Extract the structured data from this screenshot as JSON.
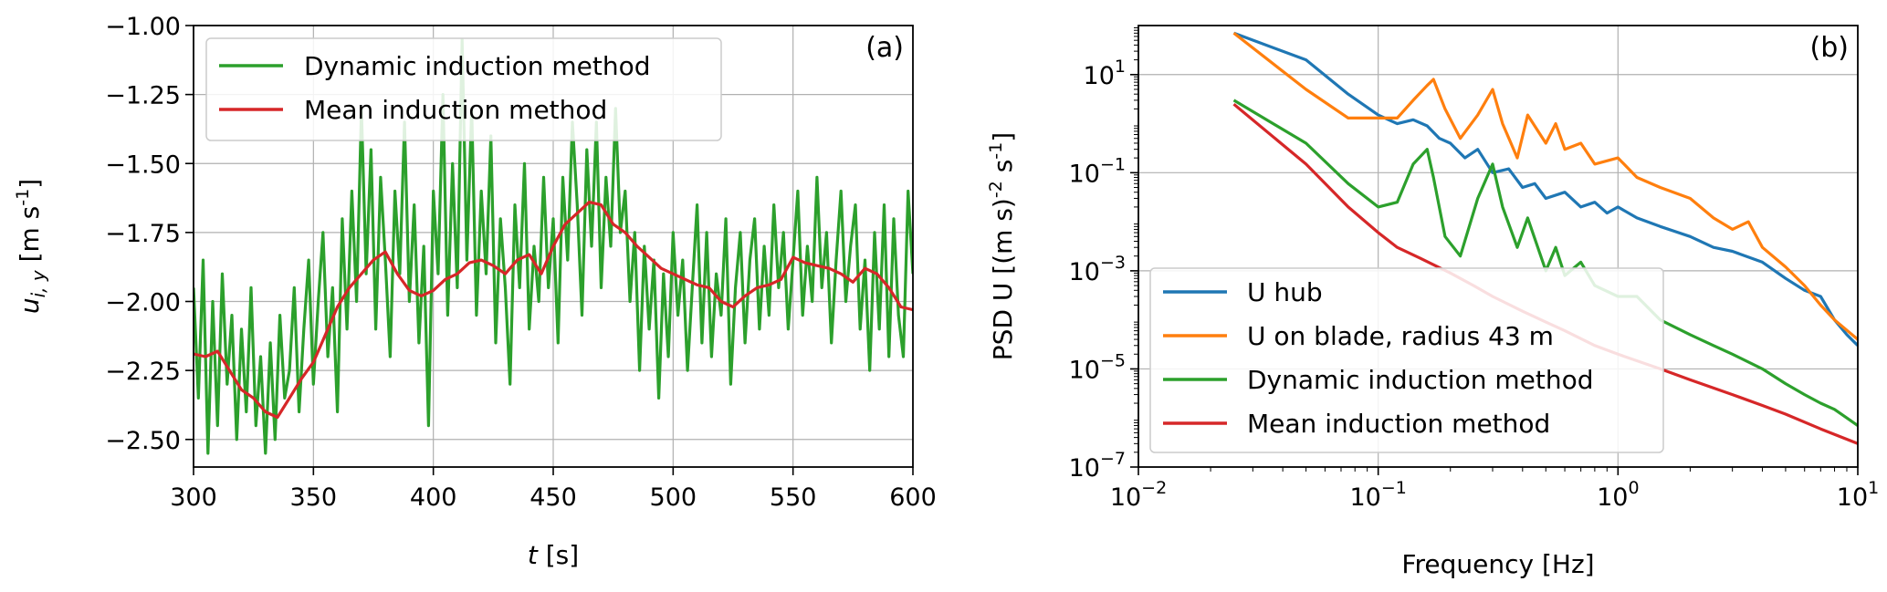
{
  "chart_data": [
    {
      "type": "line",
      "panel_label": "(a)",
      "xlabel_var": "t",
      "xlabel_unit": " [s]",
      "ylabel_var": "u",
      "ylabel_sub": "i, y",
      "ylabel_unit": " [m s",
      "ylabel_unit_sup": "-1",
      "ylabel_unit_end": "]",
      "xlim": [
        300,
        600
      ],
      "ylim": [
        -2.6,
        -1.0
      ],
      "xticks": [
        300,
        350,
        400,
        450,
        500,
        550,
        600
      ],
      "xtick_labels": [
        "300",
        "350",
        "400",
        "450",
        "500",
        "550",
        "600"
      ],
      "yticks": [
        -2.5,
        -2.25,
        -2.0,
        -1.75,
        -1.5,
        -1.25,
        -1.0
      ],
      "ytick_labels": [
        "−2.50",
        "−2.25",
        "−2.00",
        "−1.75",
        "−1.50",
        "−1.25",
        "−1.00"
      ],
      "grid": true,
      "legend_position": "top-left",
      "series": [
        {
          "name": "Dynamic induction method",
          "color": "#2ca02c",
          "x": [
            300,
            302,
            304,
            306,
            308,
            310,
            312,
            314,
            316,
            318,
            320,
            322,
            324,
            326,
            328,
            330,
            332,
            334,
            336,
            338,
            340,
            342,
            344,
            346,
            348,
            350,
            352,
            354,
            356,
            358,
            360,
            362,
            364,
            366,
            368,
            370,
            372,
            374,
            376,
            378,
            380,
            382,
            384,
            386,
            388,
            390,
            392,
            394,
            396,
            398,
            400,
            402,
            404,
            406,
            408,
            410,
            412,
            414,
            416,
            418,
            420,
            422,
            424,
            426,
            428,
            430,
            432,
            434,
            436,
            438,
            440,
            442,
            444,
            446,
            448,
            450,
            452,
            454,
            456,
            458,
            460,
            462,
            464,
            466,
            468,
            470,
            472,
            474,
            476,
            478,
            480,
            482,
            484,
            486,
            488,
            490,
            492,
            494,
            496,
            498,
            500,
            502,
            504,
            506,
            508,
            510,
            512,
            514,
            516,
            518,
            520,
            522,
            524,
            526,
            528,
            530,
            532,
            534,
            536,
            538,
            540,
            542,
            544,
            546,
            548,
            550,
            552,
            554,
            556,
            558,
            560,
            562,
            564,
            566,
            568,
            570,
            572,
            574,
            576,
            578,
            580,
            582,
            584,
            586,
            588,
            590,
            592,
            594,
            596,
            598,
            600
          ],
          "y": [
            -1.95,
            -2.35,
            -1.85,
            -2.55,
            -2.0,
            -2.45,
            -1.9,
            -2.3,
            -2.05,
            -2.5,
            -2.1,
            -2.4,
            -1.95,
            -2.45,
            -2.2,
            -2.55,
            -2.15,
            -2.5,
            -2.05,
            -2.35,
            -2.25,
            -1.95,
            -2.4,
            -2.1,
            -1.85,
            -2.3,
            -2.0,
            -1.75,
            -2.2,
            -1.95,
            -2.4,
            -1.7,
            -2.1,
            -1.6,
            -2.0,
            -1.3,
            -1.9,
            -1.45,
            -2.1,
            -1.55,
            -1.85,
            -2.2,
            -1.6,
            -1.9,
            -1.35,
            -2.0,
            -1.65,
            -2.15,
            -1.8,
            -2.45,
            -1.6,
            -1.9,
            -1.25,
            -2.05,
            -1.5,
            -1.95,
            -1.05,
            -1.85,
            -1.3,
            -2.05,
            -1.6,
            -1.9,
            -1.4,
            -2.15,
            -1.7,
            -1.95,
            -2.3,
            -1.65,
            -1.95,
            -1.5,
            -2.1,
            -1.8,
            -2.0,
            -1.55,
            -1.95,
            -1.7,
            -2.15,
            -1.55,
            -1.85,
            -1.35,
            -1.65,
            -2.05,
            -1.45,
            -1.8,
            -1.35,
            -1.95,
            -1.55,
            -1.8,
            -1.3,
            -1.75,
            -1.6,
            -2.0,
            -1.75,
            -2.25,
            -1.8,
            -2.1,
            -1.85,
            -2.35,
            -1.9,
            -2.2,
            -1.75,
            -2.05,
            -1.85,
            -2.25,
            -1.95,
            -1.65,
            -2.15,
            -1.75,
            -2.2,
            -1.9,
            -2.05,
            -1.7,
            -2.3,
            -1.95,
            -1.75,
            -2.15,
            -1.85,
            -1.7,
            -2.1,
            -1.8,
            -2.05,
            -1.65,
            -1.95,
            -1.75,
            -2.1,
            -1.85,
            -1.6,
            -2.05,
            -1.8,
            -2.0,
            -1.55,
            -1.95,
            -1.75,
            -2.15,
            -1.85,
            -1.6,
            -2.0,
            -1.8,
            -1.65,
            -2.1,
            -1.85,
            -2.25,
            -1.75,
            -2.1,
            -1.65,
            -2.2,
            -1.7,
            -2.05,
            -2.2,
            -1.6,
            -1.9
          ]
        },
        {
          "name": "Mean induction method",
          "color": "#d62728",
          "x": [
            300,
            305,
            310,
            315,
            320,
            325,
            330,
            335,
            340,
            345,
            350,
            355,
            360,
            365,
            370,
            375,
            380,
            385,
            390,
            395,
            400,
            405,
            410,
            415,
            420,
            425,
            430,
            435,
            440,
            445,
            450,
            455,
            460,
            465,
            470,
            475,
            480,
            485,
            490,
            495,
            500,
            505,
            510,
            515,
            520,
            525,
            530,
            535,
            540,
            545,
            550,
            555,
            560,
            565,
            570,
            575,
            580,
            585,
            590,
            595,
            600
          ],
          "y": [
            -2.19,
            -2.2,
            -2.18,
            -2.25,
            -2.32,
            -2.35,
            -2.4,
            -2.42,
            -2.35,
            -2.28,
            -2.22,
            -2.12,
            -2.02,
            -1.95,
            -1.9,
            -1.85,
            -1.82,
            -1.9,
            -1.96,
            -1.98,
            -1.96,
            -1.92,
            -1.9,
            -1.86,
            -1.85,
            -1.87,
            -1.9,
            -1.85,
            -1.83,
            -1.9,
            -1.8,
            -1.72,
            -1.68,
            -1.64,
            -1.65,
            -1.72,
            -1.75,
            -1.8,
            -1.84,
            -1.88,
            -1.9,
            -1.92,
            -1.94,
            -1.95,
            -2.0,
            -2.02,
            -1.98,
            -1.95,
            -1.94,
            -1.92,
            -1.84,
            -1.86,
            -1.87,
            -1.88,
            -1.9,
            -1.93,
            -1.88,
            -1.9,
            -1.95,
            -2.02,
            -2.03
          ]
        }
      ]
    },
    {
      "type": "line",
      "panel_label": "(b)",
      "xlabel": "Frequency [Hz]",
      "ylabel": "PSD U [(m s)",
      "ylabel_sup1": "-2",
      "ylabel_mid": " s",
      "ylabel_sup2": "-1",
      "ylabel_end": "]",
      "xscale": "log",
      "yscale": "log",
      "xlim": [
        0.01,
        10
      ],
      "ylim": [
        1e-07,
        100
      ],
      "xticks": [
        0.01,
        0.1,
        1,
        10
      ],
      "xtick_labels": [
        [
          "10",
          "−2"
        ],
        [
          "10",
          "−1"
        ],
        [
          "10",
          "0"
        ],
        [
          "10",
          "1"
        ]
      ],
      "yticks": [
        1e-07,
        1e-05,
        0.001,
        0.1,
        10
      ],
      "ytick_labels": [
        [
          "10",
          "−7"
        ],
        [
          "10",
          "−5"
        ],
        [
          "10",
          "−3"
        ],
        [
          "10",
          "−1"
        ],
        [
          "10",
          "1"
        ]
      ],
      "grid": true,
      "legend_position": "lower-left",
      "series": [
        {
          "name": "U hub",
          "color": "#1f77b4",
          "x": [
            0.025,
            0.05,
            0.075,
            0.1,
            0.12,
            0.14,
            0.16,
            0.18,
            0.2,
            0.23,
            0.26,
            0.3,
            0.35,
            0.4,
            0.45,
            0.5,
            0.6,
            0.7,
            0.8,
            0.9,
            1.0,
            1.2,
            1.5,
            2.0,
            2.5,
            3.0,
            4.0,
            5.0,
            6.0,
            7.0,
            8.0,
            9.0,
            10.0
          ],
          "y": [
            70,
            20,
            4,
            1.5,
            1.0,
            1.2,
            0.9,
            0.5,
            0.4,
            0.2,
            0.3,
            0.1,
            0.12,
            0.05,
            0.06,
            0.03,
            0.04,
            0.02,
            0.025,
            0.015,
            0.02,
            0.012,
            0.008,
            0.005,
            0.003,
            0.0025,
            0.0015,
            0.0007,
            0.0004,
            0.0003,
            0.0001,
            5e-05,
            3e-05
          ]
        },
        {
          "name": "U on blade, radius 43 m",
          "color": "#ff7f0e",
          "x": [
            0.025,
            0.05,
            0.075,
            0.1,
            0.12,
            0.14,
            0.16,
            0.17,
            0.19,
            0.22,
            0.26,
            0.3,
            0.33,
            0.38,
            0.42,
            0.5,
            0.55,
            0.6,
            0.7,
            0.8,
            1.0,
            1.2,
            1.5,
            2.0,
            2.5,
            3.0,
            3.5,
            4.0,
            5.0,
            6.0,
            7.0,
            8.0,
            10.0
          ],
          "y": [
            70,
            5,
            1.3,
            1.3,
            1.3,
            3,
            6,
            8,
            2,
            0.5,
            1.5,
            5,
            1.0,
            0.2,
            1.5,
            0.4,
            1.0,
            0.3,
            0.4,
            0.15,
            0.2,
            0.08,
            0.05,
            0.03,
            0.012,
            0.007,
            0.01,
            0.003,
            0.0012,
            0.0005,
            0.0002,
            0.0001,
            4e-05
          ]
        },
        {
          "name": "Dynamic induction method",
          "color": "#2ca02c",
          "x": [
            0.025,
            0.05,
            0.075,
            0.1,
            0.12,
            0.14,
            0.16,
            0.17,
            0.19,
            0.22,
            0.26,
            0.3,
            0.33,
            0.38,
            0.42,
            0.5,
            0.55,
            0.6,
            0.7,
            0.8,
            1.0,
            1.2,
            1.5,
            2.0,
            2.5,
            3.0,
            4.0,
            5.0,
            6.0,
            7.0,
            8.0,
            9.0,
            10.0
          ],
          "y": [
            3,
            0.4,
            0.06,
            0.02,
            0.025,
            0.15,
            0.3,
            0.08,
            0.005,
            0.002,
            0.03,
            0.15,
            0.02,
            0.003,
            0.012,
            0.001,
            0.003,
            0.0008,
            0.0015,
            0.0005,
            0.0003,
            0.0003,
            0.0001,
            5e-05,
            3e-05,
            2e-05,
            1e-05,
            5e-06,
            3e-06,
            2e-06,
            1.5e-06,
            1e-06,
            7e-07
          ]
        },
        {
          "name": "Mean induction method",
          "color": "#d62728",
          "x": [
            0.025,
            0.05,
            0.075,
            0.1,
            0.12,
            0.15,
            0.2,
            0.25,
            0.3,
            0.4,
            0.5,
            0.6,
            0.8,
            1.0,
            1.5,
            2.0,
            3.0,
            4.0,
            5.0,
            7.0,
            10.0
          ],
          "y": [
            2.5,
            0.15,
            0.02,
            0.006,
            0.003,
            0.0018,
            0.0009,
            0.0005,
            0.0003,
            0.00015,
            9e-05,
            6e-05,
            3e-05,
            2e-05,
            1e-05,
            6e-06,
            3e-06,
            1.8e-06,
            1.2e-06,
            6e-07,
            3e-07
          ]
        }
      ]
    }
  ]
}
